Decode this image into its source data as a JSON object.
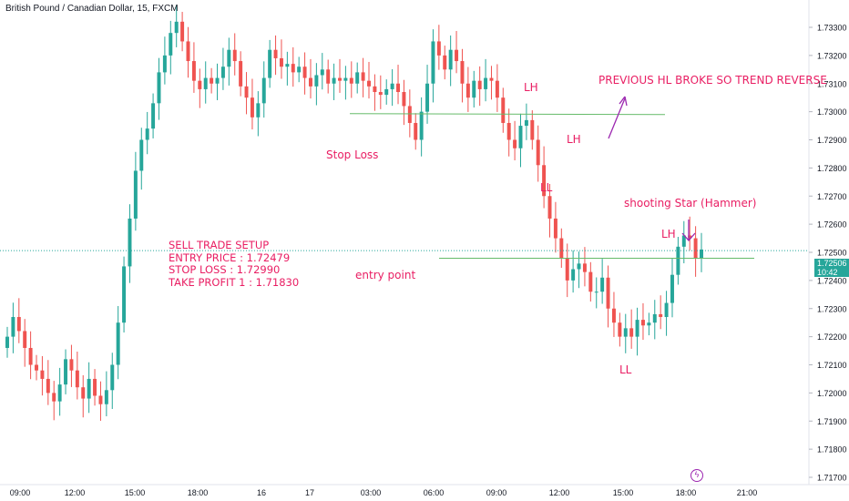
{
  "header": {
    "title": "British Pound / Canadian Dollar, 15, FXCM"
  },
  "annotations": {
    "stop_loss": "Stop Loss",
    "entry_point": "entry point",
    "trend_note": "PREVIOUS HL BROKE SO TREND REVERSE",
    "shooting_star": "shooting Star (Hammer)",
    "lh1": "LH",
    "lh2": "LH",
    "lh3": "LH",
    "ll1": "LL",
    "ll2": "LL"
  },
  "setup": {
    "title": "SELL TRADE SETUP",
    "entry": "ENTRY PRICE : 1.72479",
    "stop": "STOP LOSS : 1.72990",
    "tp": "TAKE PROFIT 1 : 1.71830"
  },
  "price_tag": {
    "price": "1.72506",
    "time": "10:42"
  },
  "colors": {
    "up": "#26a69a",
    "down": "#ef5350",
    "annotation": "#e91e63",
    "level_line": "#66bb6a",
    "arrow": "#9c27b0"
  },
  "chart_data": {
    "type": "candlestick",
    "symbol": "British Pound / Canadian Dollar",
    "interval": "15",
    "ylim": [
      1.7165,
      1.7345
    ],
    "y_ticks": [
      1.733,
      1.732,
      1.731,
      1.73,
      1.729,
      1.728,
      1.727,
      1.726,
      1.725,
      1.724,
      1.723,
      1.722,
      1.721,
      1.72,
      1.719,
      1.718,
      1.717
    ],
    "y_tick_labels": [
      "1.73300",
      "1.73200",
      "1.73100",
      "1.73000",
      "1.72900",
      "1.72800",
      "1.72700",
      "1.72600",
      "1.72500",
      "1.72400",
      "1.72300",
      "1.72200",
      "1.72100",
      "1.72000",
      "1.71900",
      "1.71800",
      "1.71700"
    ],
    "x_tick_labels": [
      "09:00",
      "12:00",
      "15:00",
      "18:00",
      "16",
      "17",
      "03:00",
      "06:00",
      "09:00",
      "12:00",
      "15:00",
      "18:00",
      "21:00"
    ],
    "last_price": 1.72506,
    "levels": {
      "stop_loss": 1.7299,
      "entry": 1.72479,
      "take_profit_1": 1.7183
    },
    "closes": [
      1.722,
      1.7227,
      1.7222,
      1.7216,
      1.721,
      1.7208,
      1.7205,
      1.72,
      1.7197,
      1.7203,
      1.7212,
      1.7208,
      1.7202,
      1.7198,
      1.7205,
      1.7199,
      1.7196,
      1.7201,
      1.721,
      1.7225,
      1.7245,
      1.7262,
      1.7279,
      1.729,
      1.7294,
      1.7303,
      1.7314,
      1.732,
      1.7328,
      1.7332,
      1.7325,
      1.7318,
      1.7311,
      1.7308,
      1.7312,
      1.731,
      1.7312,
      1.7316,
      1.7322,
      1.7318,
      1.7309,
      1.7305,
      1.7298,
      1.7303,
      1.7312,
      1.7322,
      1.7319,
      1.7316,
      1.7317,
      1.7314,
      1.7316,
      1.7312,
      1.7309,
      1.7313,
      1.7315,
      1.731,
      1.7312,
      1.7311,
      1.7312,
      1.731,
      1.7314,
      1.7311,
      1.7309,
      1.7307,
      1.7306,
      1.7308,
      1.731,
      1.7307,
      1.7302,
      1.7296,
      1.729,
      1.73,
      1.731,
      1.7325,
      1.732,
      1.7315,
      1.7322,
      1.7318,
      1.731,
      1.7305,
      1.7311,
      1.7308,
      1.7312,
      1.7311,
      1.7305,
      1.7296,
      1.729,
      1.7287,
      1.7295,
      1.7297,
      1.729,
      1.7281,
      1.727,
      1.7262,
      1.7255,
      1.7248,
      1.724,
      1.7244,
      1.7246,
      1.7243,
      1.7236,
      1.7236,
      1.7241,
      1.723,
      1.7225,
      1.722,
      1.7223,
      1.722,
      1.7226,
      1.7224,
      1.7225,
      1.7228,
      1.7227,
      1.7232,
      1.7242,
      1.7252,
      1.7256,
      1.7255,
      1.7248,
      1.7251
    ]
  }
}
